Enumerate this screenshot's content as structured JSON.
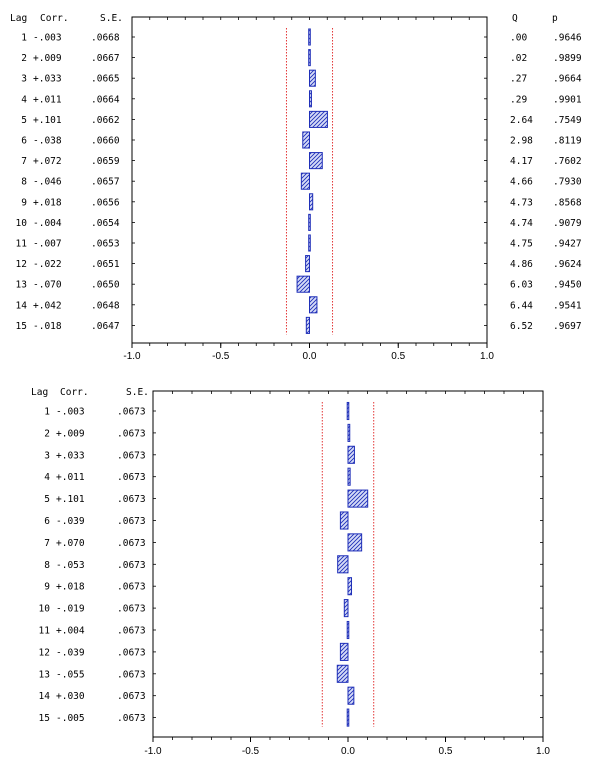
{
  "colors": {
    "bar_fill": "#d6dcf7",
    "bar_stroke": "#1f2fb8",
    "hatch": "#1f2fb8",
    "ci_line": "#e02020",
    "frame": "#000000"
  },
  "chart_data": [
    {
      "type": "bar",
      "orientation": "horizontal",
      "header": {
        "lag": "Lag",
        "corr": "Corr.",
        "se": "S.E.",
        "q": "Q",
        "p": "p"
      },
      "lags": [
        "1",
        "2",
        "3",
        "4",
        "5",
        "6",
        "7",
        "8",
        "9",
        "10",
        "11",
        "12",
        "13",
        "14",
        "15"
      ],
      "corr_labels": [
        "-.003",
        "+.009",
        "+.033",
        "+.011",
        "+.101",
        "-.038",
        "+.072",
        "-.046",
        "+.018",
        "-.004",
        "-.007",
        "-.022",
        "-.070",
        "+.042",
        "-.018"
      ],
      "values": [
        -0.003,
        0.009,
        0.033,
        0.011,
        0.101,
        -0.038,
        0.072,
        -0.046,
        0.018,
        -0.004,
        -0.007,
        -0.022,
        -0.07,
        0.042,
        -0.018
      ],
      "se": [
        ".0668",
        ".0667",
        ".0665",
        ".0664",
        ".0662",
        ".0660",
        ".0659",
        ".0657",
        ".0656",
        ".0654",
        ".0653",
        ".0651",
        ".0650",
        ".0648",
        ".0647"
      ],
      "q": [
        ".00",
        ".02",
        ".27",
        ".29",
        "2.64",
        "2.98",
        "4.17",
        "4.66",
        "4.73",
        "4.74",
        "4.75",
        "4.86",
        "6.03",
        "6.44",
        "6.52"
      ],
      "p": [
        ".9646",
        ".9899",
        ".9664",
        ".9901",
        ".7549",
        ".8119",
        ".7602",
        ".7930",
        ".8568",
        ".9079",
        ".9427",
        ".9624",
        ".9450",
        ".9541",
        ".9697"
      ],
      "xlim": [
        -1.0,
        1.0
      ],
      "xticks": [
        "-1.0",
        "-0.5",
        "0.0",
        "0.5",
        "1.0"
      ],
      "confidence_band": [
        -0.13,
        0.13
      ]
    },
    {
      "type": "bar",
      "orientation": "horizontal",
      "header": {
        "lag": "Lag",
        "corr": "Corr.",
        "se": "S.E."
      },
      "lags": [
        "1",
        "2",
        "3",
        "4",
        "5",
        "6",
        "7",
        "8",
        "9",
        "10",
        "11",
        "12",
        "13",
        "14",
        "15"
      ],
      "corr_labels": [
        "-.003",
        "+.009",
        "+.033",
        "+.011",
        "+.101",
        "-.039",
        "+.070",
        "-.053",
        "+.018",
        "-.019",
        "+.004",
        "-.039",
        "-.055",
        "+.030",
        "-.005"
      ],
      "values": [
        -0.003,
        0.009,
        0.033,
        0.011,
        0.101,
        -0.039,
        0.07,
        -0.053,
        0.018,
        -0.019,
        0.004,
        -0.039,
        -0.055,
        0.03,
        -0.005
      ],
      "se": [
        ".0673",
        ".0673",
        ".0673",
        ".0673",
        ".0673",
        ".0673",
        ".0673",
        ".0673",
        ".0673",
        ".0673",
        ".0673",
        ".0673",
        ".0673",
        ".0673",
        ".0673"
      ],
      "xlim": [
        -1.0,
        1.0
      ],
      "xticks": [
        "-1.0",
        "-0.5",
        "0.0",
        "0.5",
        "1.0"
      ],
      "confidence_band": [
        -0.132,
        0.132
      ]
    }
  ]
}
